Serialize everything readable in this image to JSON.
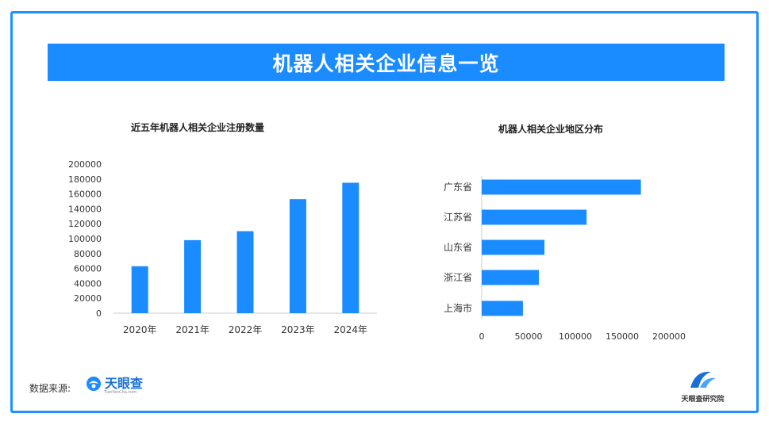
{
  "banner": {
    "title": "机器人相关企业信息一览"
  },
  "colors": {
    "accent": "#1a8cff",
    "bar": "#1a8cff",
    "border": "#1e90ff"
  },
  "chart_data": [
    {
      "type": "bar",
      "title": "近五年机器人相关企业注册数量",
      "categories": [
        "2020年",
        "2021年",
        "2022年",
        "2023年",
        "2024年"
      ],
      "values": [
        63000,
        98000,
        110000,
        153000,
        175000
      ],
      "ylim": [
        0,
        200000
      ],
      "yticks": [
        "0",
        "20000",
        "40000",
        "60000",
        "80000",
        "100000",
        "120000",
        "140000",
        "160000",
        "180000",
        "200000"
      ],
      "xlabel": "",
      "ylabel": "",
      "grid": false
    },
    {
      "type": "bar",
      "orientation": "horizontal",
      "title": "机器人相关企业地区分布",
      "categories": [
        "广东省",
        "江苏省",
        "山东省",
        "浙江省",
        "上海市"
      ],
      "values": [
        170000,
        112000,
        67000,
        61000,
        44000
      ],
      "xlim": [
        0,
        200000
      ],
      "xticks": [
        "0",
        "50000",
        "100000",
        "150000",
        "200000"
      ],
      "xlabel": "",
      "ylabel": "",
      "grid": false
    }
  ],
  "footer": {
    "source_label": "数据来源:",
    "source_logo_text": "天眼查",
    "source_logo_sub": "TianYanCha.com",
    "brand_text": "天眼查研究院"
  }
}
